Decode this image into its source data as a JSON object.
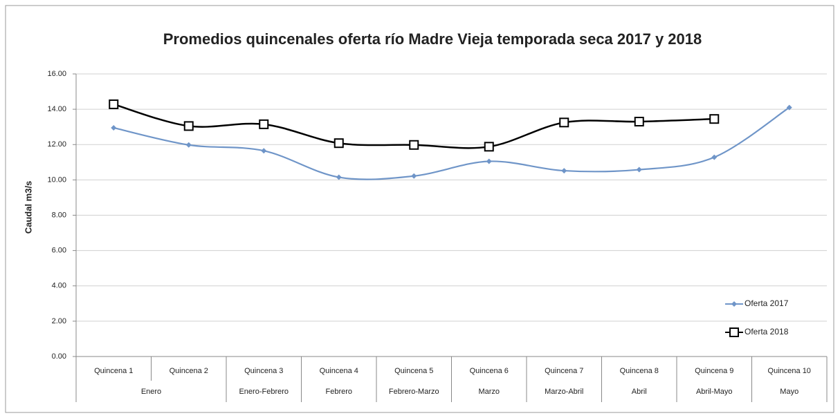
{
  "chart_data": {
    "type": "line",
    "title": "Promedios quincenales oferta río Madre Vieja temporada seca 2017 y 2018",
    "y_label": "Caudal m3/s",
    "categories": [
      "Quincena 1",
      "Quincena 2",
      "Quincena 3",
      "Quincena 4",
      "Quincena 5",
      "Quincena 6",
      "Quincena 7",
      "Quincena 8",
      "Quincena 9",
      "Quincena 10"
    ],
    "category_groups": [
      {
        "name": "Enero",
        "span": 2
      },
      {
        "name": "Enero-Febrero",
        "span": 1
      },
      {
        "name": "Febrero",
        "span": 1
      },
      {
        "name": "Febrero-Marzo",
        "span": 1
      },
      {
        "name": "Marzo",
        "span": 1
      },
      {
        "name": "Marzo-Abril",
        "span": 1
      },
      {
        "name": "Abril",
        "span": 1
      },
      {
        "name": "Abril-Mayo",
        "span": 1
      },
      {
        "name": "Mayo",
        "span": 1
      }
    ],
    "series": [
      {
        "name": "Oferta 2017",
        "color": "#6f95c8",
        "marker": "diamond",
        "values": [
          12.95,
          11.98,
          11.65,
          10.15,
          10.22,
          11.05,
          10.52,
          10.58,
          11.28,
          14.1
        ]
      },
      {
        "name": "Oferta  2018",
        "color": "#000000",
        "marker": "square",
        "values": [
          14.28,
          13.05,
          13.15,
          12.08,
          11.98,
          11.88,
          13.25,
          13.3,
          13.45,
          null
        ]
      }
    ],
    "ylim": [
      0,
      16
    ],
    "yticks": [
      {
        "value": 0,
        "label": "0.00"
      },
      {
        "value": 2,
        "label": "2.00"
      },
      {
        "value": 4,
        "label": "4.00"
      },
      {
        "value": 6,
        "label": "6.00"
      },
      {
        "value": 8,
        "label": "8.00"
      },
      {
        "value": 10,
        "label": "10.00"
      },
      {
        "value": 12,
        "label": "12.00"
      },
      {
        "value": 14,
        "label": "14.00"
      },
      {
        "value": 16,
        "label": "16.00"
      }
    ],
    "grid": true,
    "smooth": true,
    "legend": "lower right"
  }
}
